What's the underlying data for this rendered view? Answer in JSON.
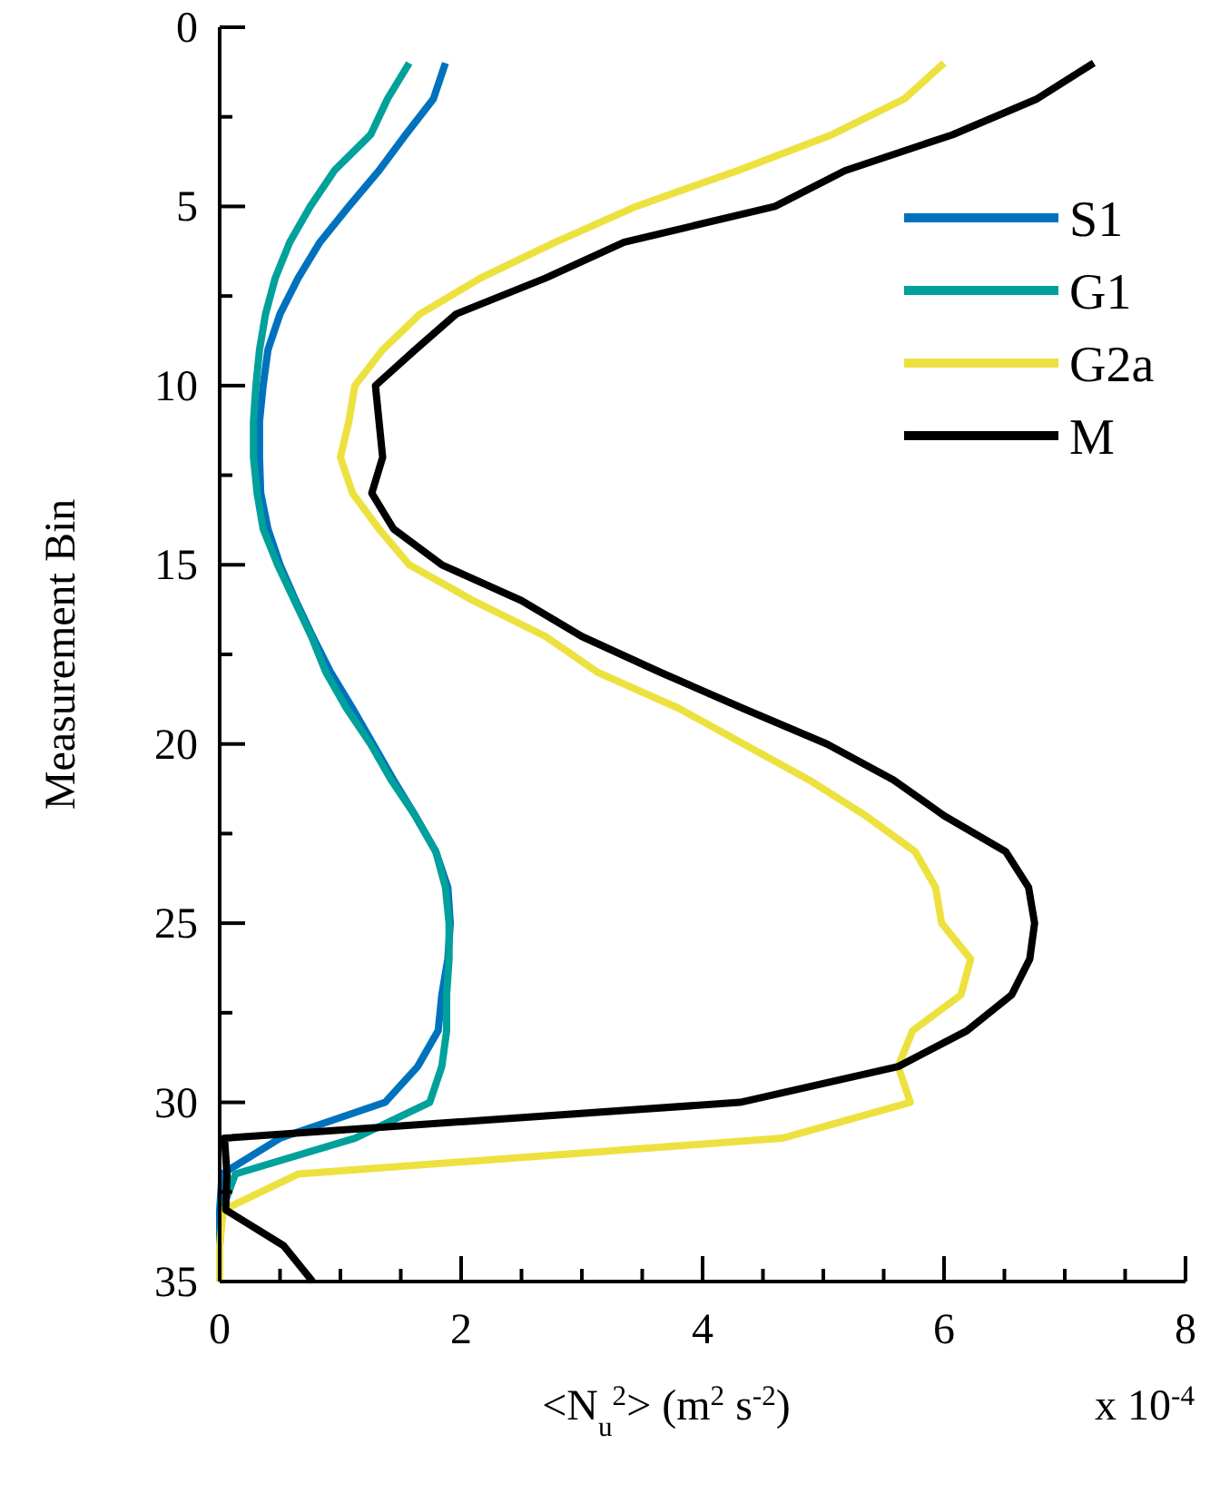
{
  "chart_data": {
    "type": "line",
    "xlabel": "<N$_{u}$$^{2}$> (m$^{2}$ s$^{-2}$)",
    "ylabel": "Measurement Bin",
    "annotations": [
      "x 10$^{-4}$"
    ],
    "xlim": [
      0,
      8
    ],
    "xticks": [
      0,
      {
        "value": 0.5,
        "label": null
      },
      {
        "value": 1,
        "label": null
      },
      {
        "value": 1.5,
        "label": null
      },
      2,
      {
        "value": 2.5,
        "label": null
      },
      {
        "value": 3,
        "label": null
      },
      {
        "value": 3.5,
        "label": null
      },
      4,
      {
        "value": 4.5,
        "label": null
      },
      {
        "value": 5,
        "label": null
      },
      {
        "value": 5.5,
        "label": null
      },
      6,
      {
        "value": 6.5,
        "label": null
      },
      {
        "value": 7,
        "label": null
      },
      {
        "value": 7.5,
        "label": null
      },
      8
    ],
    "ylim": [
      35,
      0
    ],
    "yticks": [
      0,
      {
        "value": 2.5,
        "label": null
      },
      5,
      {
        "value": 7.5,
        "label": null
      },
      10,
      {
        "value": 12.5,
        "label": null
      },
      15,
      {
        "value": 17.5,
        "label": null
      },
      20,
      {
        "value": 22.5,
        "label": null
      },
      25,
      {
        "value": 27.5,
        "label": null
      },
      30,
      {
        "value": 32.5,
        "label": null
      },
      35
    ],
    "grid": false,
    "legend": "top right",
    "marker": "none",
    "line_style": "solid",
    "series": [
      {
        "name": "S1",
        "color": "#0072bd",
        "x": [
          1.87,
          1.77,
          1.54,
          1.32,
          1.07,
          0.83,
          0.65,
          0.5,
          0.4,
          0.36,
          0.33,
          0.33,
          0.34,
          0.4,
          0.5,
          0.63,
          0.77,
          0.92,
          1.1,
          1.27,
          1.44,
          1.62,
          1.79,
          1.89,
          1.91,
          1.89,
          1.84,
          1.81,
          1.64,
          1.37,
          0.5,
          0.02,
          0,
          0,
          0
        ],
        "values": [
          1,
          2,
          3,
          4,
          5,
          6,
          7,
          8,
          9,
          10,
          11,
          12,
          13,
          14,
          15,
          16,
          17,
          18,
          19,
          20,
          21,
          22,
          23,
          24,
          25,
          26,
          27,
          28,
          29,
          30,
          31,
          32,
          33,
          34,
          35
        ]
      },
      {
        "name": "G1",
        "color": "#00a19a",
        "x": [
          1.57,
          1.39,
          1.25,
          0.95,
          0.75,
          0.58,
          0.46,
          0.38,
          0.33,
          0.3,
          0.28,
          0.28,
          0.31,
          0.36,
          0.48,
          0.62,
          0.76,
          0.88,
          1.05,
          1.25,
          1.42,
          1.62,
          1.79,
          1.87,
          1.9,
          1.9,
          1.88,
          1.88,
          1.84,
          1.74,
          1.12,
          0.13,
          0.02,
          0,
          0
        ],
        "values": [
          1,
          2,
          3,
          4,
          5,
          6,
          7,
          8,
          9,
          10,
          11,
          12,
          13,
          14,
          15,
          16,
          17,
          18,
          19,
          20,
          21,
          22,
          23,
          24,
          25,
          26,
          27,
          28,
          29,
          30,
          31,
          32,
          33,
          34,
          35
        ]
      },
      {
        "name": "G2a",
        "color": "#ede13f",
        "x": [
          6.0,
          5.67,
          5.07,
          4.29,
          3.45,
          2.78,
          2.16,
          1.66,
          1.35,
          1.12,
          1.07,
          1.0,
          1.1,
          1.32,
          1.57,
          2.1,
          2.7,
          3.13,
          3.8,
          4.34,
          4.88,
          5.35,
          5.76,
          5.93,
          5.98,
          6.22,
          6.14,
          5.74,
          5.62,
          5.72,
          4.66,
          0.65,
          0.03,
          0,
          0
        ],
        "values": [
          1,
          2,
          3,
          4,
          5,
          6,
          7,
          8,
          9,
          10,
          11,
          12,
          13,
          14,
          15,
          16,
          17,
          18,
          19,
          20,
          21,
          22,
          23,
          24,
          25,
          26,
          27,
          28,
          29,
          30,
          31,
          32,
          33,
          34,
          35
        ]
      },
      {
        "name": "M",
        "color": "#000000",
        "x": [
          7.24,
          6.77,
          6.07,
          5.18,
          4.6,
          3.35,
          2.7,
          1.96,
          1.62,
          1.29,
          1.32,
          1.35,
          1.26,
          1.44,
          1.84,
          2.5,
          3.0,
          3.65,
          4.33,
          5.03,
          5.58,
          6.0,
          6.51,
          6.7,
          6.75,
          6.71,
          6.56,
          6.19,
          5.62,
          4.31,
          0.04,
          0.06,
          0.05,
          0.53,
          0.77
        ],
        "values": [
          1,
          2,
          3,
          4,
          5,
          6,
          7,
          8,
          9,
          10,
          11,
          12,
          13,
          14,
          15,
          16,
          17,
          18,
          19,
          20,
          21,
          22,
          23,
          24,
          25,
          26,
          27,
          28,
          29,
          30,
          31,
          32,
          33,
          34,
          35
        ]
      }
    ]
  }
}
